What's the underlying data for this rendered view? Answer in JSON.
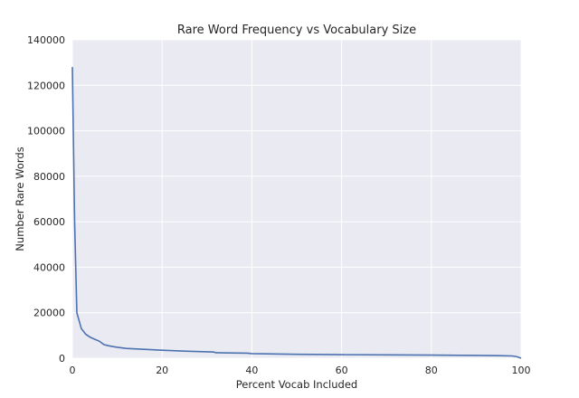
{
  "chart_data": {
    "type": "line",
    "title": "Rare Word Frequency vs Vocabulary Size",
    "xlabel": "Percent Vocab Included",
    "ylabel": "Number Rare Words",
    "xlim": [
      0,
      100
    ],
    "ylim": [
      0,
      140000
    ],
    "xticks": [
      0,
      20,
      40,
      60,
      80,
      100
    ],
    "yticks": [
      0,
      20000,
      40000,
      60000,
      80000,
      100000,
      120000,
      140000
    ],
    "grid": true,
    "colors": {
      "background": "#eaeaf2",
      "grid": "#ffffff",
      "line": "#4c72b0"
    },
    "series": [
      {
        "x": [
          0,
          0.2,
          0.5,
          1,
          2,
          3,
          4,
          5,
          6,
          7,
          8,
          10,
          12,
          15,
          20,
          25,
          30,
          31.5,
          32,
          35,
          39,
          40,
          45,
          50,
          60,
          70,
          80,
          90,
          95,
          98,
          99,
          100
        ],
        "values": [
          128000,
          100000,
          60000,
          20000,
          13000,
          10500,
          9200,
          8300,
          7500,
          6000,
          5500,
          4800,
          4300,
          4000,
          3500,
          3100,
          2800,
          2700,
          2400,
          2300,
          2200,
          2000,
          1850,
          1700,
          1550,
          1450,
          1350,
          1200,
          1100,
          1000,
          700,
          0
        ]
      }
    ]
  }
}
